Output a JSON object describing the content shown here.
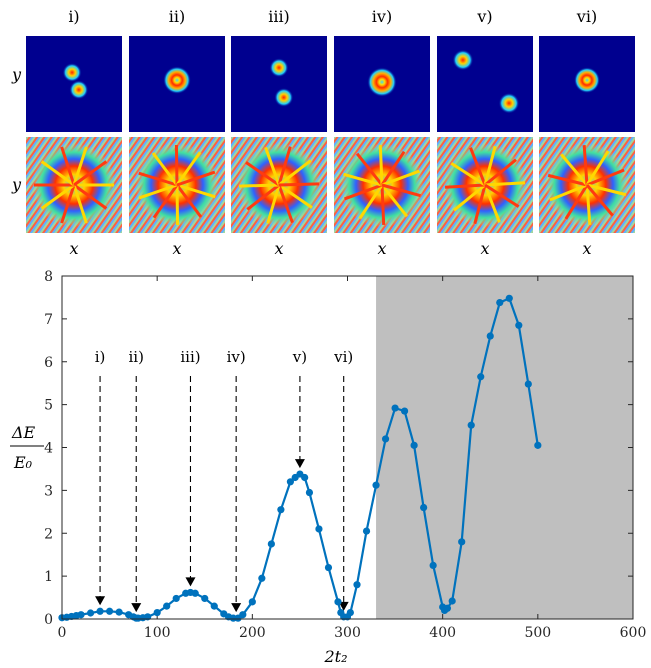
{
  "panels": {
    "labels": [
      "i)",
      "ii)",
      "iii)",
      "iv)",
      "v)",
      "vi)"
    ],
    "row_labels": [
      "y",
      "y"
    ],
    "col_axis_label": "x"
  },
  "chart_data": {
    "type": "line",
    "xlabel": "2t₂",
    "ylabel_num": "ΔE",
    "ylabel_den": "E₀",
    "xlim": [
      0,
      600
    ],
    "ylim": [
      0,
      8
    ],
    "xticks": [
      0,
      100,
      200,
      300,
      400,
      500,
      600
    ],
    "yticks": [
      0,
      1,
      2,
      3,
      4,
      5,
      6,
      7,
      8
    ],
    "shaded_region_x": [
      330,
      600
    ],
    "series_color": "#0072BD",
    "shade_color": "#bfbfbf",
    "x": [
      0,
      5,
      10,
      15,
      20,
      30,
      40,
      50,
      60,
      70,
      75,
      78,
      80,
      85,
      90,
      100,
      110,
      120,
      130,
      135,
      140,
      150,
      160,
      170,
      175,
      180,
      185,
      190,
      200,
      210,
      220,
      230,
      240,
      245,
      250,
      255,
      260,
      270,
      280,
      290,
      293,
      296,
      300,
      303,
      310,
      320,
      330,
      340,
      350,
      360,
      370,
      380,
      390,
      400,
      402,
      405,
      410,
      420,
      430,
      440,
      450,
      460,
      470,
      480,
      490,
      500
    ],
    "y": [
      0.03,
      0.04,
      0.06,
      0.08,
      0.1,
      0.14,
      0.18,
      0.18,
      0.16,
      0.1,
      0.05,
      0.02,
      0.02,
      0.03,
      0.05,
      0.15,
      0.3,
      0.48,
      0.6,
      0.62,
      0.6,
      0.48,
      0.3,
      0.12,
      0.05,
      0.02,
      0.02,
      0.1,
      0.4,
      0.95,
      1.75,
      2.55,
      3.2,
      3.3,
      3.38,
      3.3,
      2.95,
      2.1,
      1.2,
      0.4,
      0.15,
      0.05,
      0.05,
      0.15,
      0.8,
      2.05,
      3.12,
      4.2,
      4.92,
      4.85,
      4.05,
      2.6,
      1.25,
      0.28,
      0.2,
      0.25,
      0.42,
      1.8,
      4.52,
      5.65,
      6.6,
      7.38,
      7.48,
      6.85,
      5.48,
      4.05
    ],
    "annotations": [
      {
        "label": "i)",
        "x": 40,
        "y": 0.18
      },
      {
        "label": "ii)",
        "x": 78,
        "y": 0.02
      },
      {
        "label": "iii)",
        "x": 135,
        "y": 0.62
      },
      {
        "label": "iv)",
        "x": 183,
        "y": 0.02
      },
      {
        "label": "v)",
        "x": 250,
        "y": 3.38
      },
      {
        "label": "vi)",
        "x": 296,
        "y": 0.05
      }
    ]
  }
}
